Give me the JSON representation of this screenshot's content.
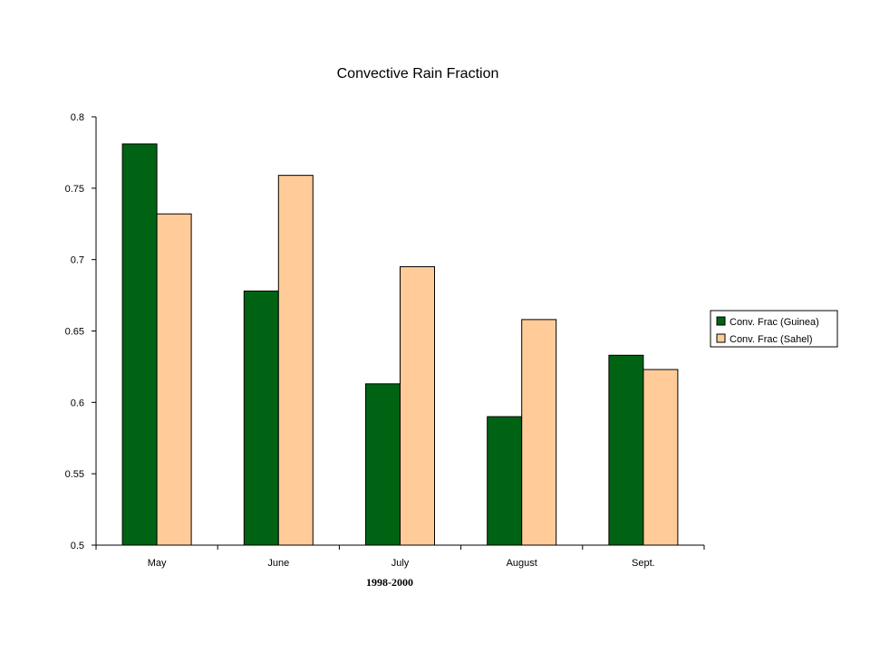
{
  "chart_data": {
    "type": "bar",
    "title": "Convective Rain Fraction",
    "xlabel": "1998-2000",
    "ylabel": "",
    "ylim": [
      0.5,
      0.8
    ],
    "yticks": [
      "0.5",
      "0.55",
      "0.6",
      "0.65",
      "0.7",
      "0.75",
      "0.8"
    ],
    "categories": [
      "May",
      "June",
      "July",
      "August",
      "Sept."
    ],
    "series": [
      {
        "name": "Conv. Frac (Guinea)",
        "color": "#006313",
        "values": [
          0.781,
          0.678,
          0.613,
          0.59,
          0.633
        ]
      },
      {
        "name": "Conv. Frac (Sahel)",
        "color": "#FFCC99",
        "values": [
          0.732,
          0.759,
          0.695,
          0.658,
          0.623
        ]
      }
    ],
    "grid": false,
    "legend_position": "right"
  }
}
